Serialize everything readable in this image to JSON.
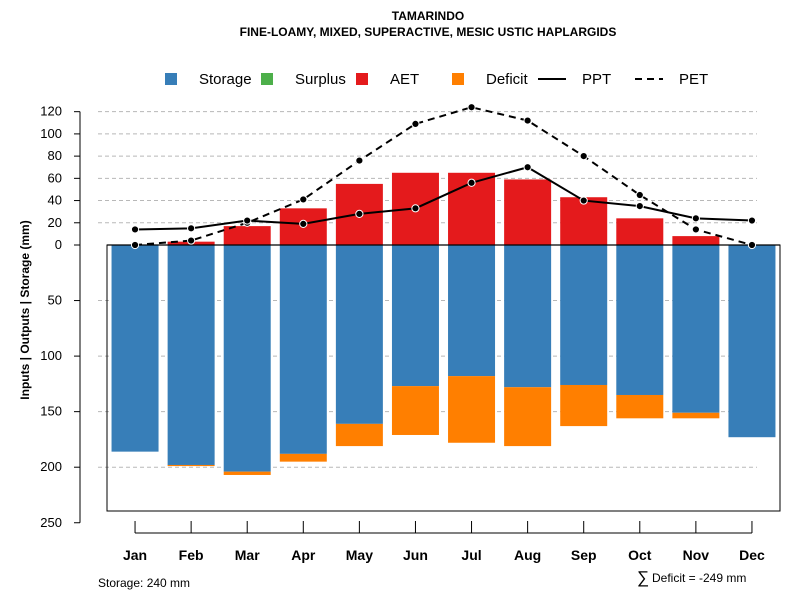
{
  "chart_data": {
    "type": "bar",
    "title": "TAMARINDO",
    "subtitle": "FINE-LOAMY, MIXED, SUPERACTIVE, MESIC USTIC HAPLARGIDS",
    "ylabel": "Inputs | Outputs | Storage    (mm)",
    "xlabel": "",
    "categories": [
      "Jan",
      "Feb",
      "Mar",
      "Apr",
      "May",
      "Jun",
      "Jul",
      "Aug",
      "Sep",
      "Oct",
      "Nov",
      "Dec"
    ],
    "upper_axis": {
      "range": [
        0,
        120
      ],
      "ticks": [
        0,
        20,
        40,
        60,
        80,
        100,
        120
      ],
      "direction": "up"
    },
    "lower_axis": {
      "range": [
        0,
        250
      ],
      "ticks": [
        0,
        50,
        100,
        150,
        200,
        250
      ],
      "direction": "down",
      "tick_labels": [
        "0",
        "50",
        "100",
        "150",
        "200",
        "250"
      ]
    },
    "grid": true,
    "legend_position": "top",
    "legend": [
      {
        "key": "storage",
        "label": "Storage",
        "kind": "box",
        "color": "#377EB8"
      },
      {
        "key": "surplus",
        "label": "Surplus",
        "kind": "box",
        "color": "#4DAF4A"
      },
      {
        "key": "aet",
        "label": "AET",
        "kind": "box",
        "color": "#E41A1C"
      },
      {
        "key": "deficit",
        "label": "Deficit",
        "kind": "box",
        "color": "#FF7F00"
      },
      {
        "key": "ppt",
        "label": "PPT",
        "kind": "solid-line",
        "color": "#000000"
      },
      {
        "key": "pet",
        "label": "PET",
        "kind": "dashed-line",
        "color": "#000000"
      }
    ],
    "series": [
      {
        "name": "Storage",
        "color": "#377EB8",
        "values": [
          186,
          198,
          204,
          188,
          161,
          127,
          118,
          128,
          126,
          135,
          151,
          173
        ]
      },
      {
        "name": "Deficit",
        "color": "#FF7F00",
        "values": [
          0,
          1,
          3,
          7,
          20,
          44,
          60,
          53,
          37,
          21,
          5,
          0
        ]
      },
      {
        "name": "Surplus",
        "color": "#4DAF4A",
        "values": [
          0,
          0,
          0,
          0,
          0,
          0,
          0,
          0,
          0,
          0,
          0,
          0
        ]
      },
      {
        "name": "AET",
        "color": "#E41A1C",
        "values": [
          0,
          3,
          17,
          33,
          55,
          65,
          65,
          59,
          43,
          24,
          8,
          0
        ]
      },
      {
        "name": "PPT",
        "color": "#000000",
        "values": [
          14,
          15,
          22,
          19,
          28,
          33,
          56,
          70,
          40,
          35,
          24,
          22
        ]
      },
      {
        "name": "PET",
        "color": "#000000",
        "values": [
          0,
          4,
          20,
          41,
          76,
          109,
          124,
          112,
          80,
          45,
          14,
          0
        ]
      }
    ]
  },
  "footer": {
    "storage_text": "Storage: 240 mm",
    "deficit_symbol": "∑",
    "deficit_text": "Deficit = -249 mm"
  }
}
